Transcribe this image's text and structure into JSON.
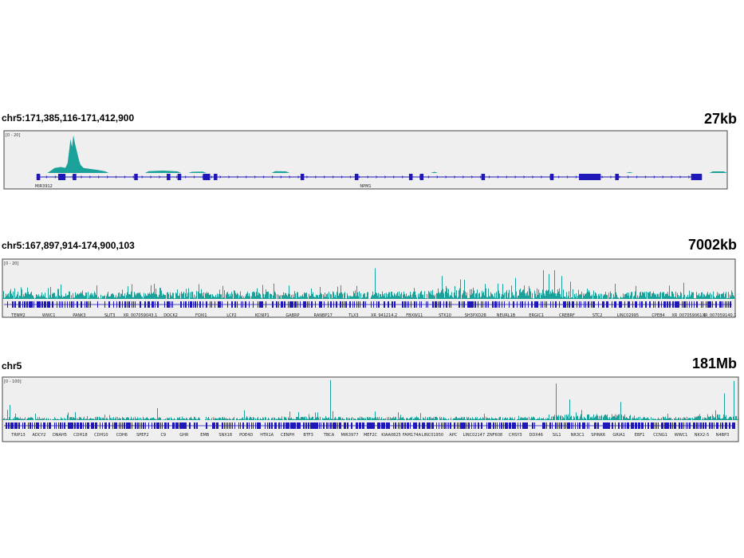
{
  "colors": {
    "signal": "#1aa19a",
    "gene": "#1f18b8",
    "panel_bg": "#efefef",
    "border": "#444444"
  },
  "chart_data": [
    {
      "type": "area",
      "locus": "chr5:171,385,116-171,412,900",
      "span": "27kb",
      "scale_label": "[0 - 20]",
      "ylim": [
        0,
        20
      ],
      "grid": false,
      "signal": [
        [
          0.06,
          0
        ],
        [
          0.065,
          1.2
        ],
        [
          0.07,
          2.5
        ],
        [
          0.078,
          3
        ],
        [
          0.085,
          2.6
        ],
        [
          0.088,
          5
        ],
        [
          0.09,
          11
        ],
        [
          0.092,
          17
        ],
        [
          0.094,
          13
        ],
        [
          0.096,
          19
        ],
        [
          0.098,
          15
        ],
        [
          0.1,
          12
        ],
        [
          0.102,
          9
        ],
        [
          0.104,
          6
        ],
        [
          0.106,
          4
        ],
        [
          0.11,
          2.5
        ],
        [
          0.12,
          2
        ],
        [
          0.13,
          1.5
        ],
        [
          0.14,
          0.8
        ],
        [
          0.145,
          0
        ],
        [
          0.195,
          0
        ],
        [
          0.2,
          0.9
        ],
        [
          0.22,
          1.2
        ],
        [
          0.24,
          0.8
        ],
        [
          0.245,
          0
        ],
        [
          0.255,
          0
        ],
        [
          0.26,
          0.6
        ],
        [
          0.275,
          0.7
        ],
        [
          0.28,
          0
        ],
        [
          0.37,
          0
        ],
        [
          0.375,
          0.9
        ],
        [
          0.39,
          0.8
        ],
        [
          0.395,
          0
        ],
        [
          0.59,
          0
        ],
        [
          0.595,
          0.6
        ],
        [
          0.6,
          0
        ],
        [
          0.86,
          0
        ],
        [
          0.865,
          0.5
        ],
        [
          0.87,
          0
        ],
        [
          0.975,
          0
        ],
        [
          0.98,
          0.8
        ],
        [
          0.995,
          0.8
        ],
        [
          1.0,
          0
        ]
      ],
      "gene_labels": [
        "MIR3912",
        "NPM1"
      ],
      "exons": [
        [
          0.045,
          0.05
        ],
        [
          0.075,
          0.085
        ],
        [
          0.095,
          0.1
        ],
        [
          0.18,
          0.185
        ],
        [
          0.225,
          0.23
        ],
        [
          0.24,
          0.245
        ],
        [
          0.275,
          0.285
        ],
        [
          0.29,
          0.295
        ],
        [
          0.41,
          0.415
        ],
        [
          0.485,
          0.49
        ],
        [
          0.56,
          0.565
        ],
        [
          0.575,
          0.58
        ],
        [
          0.66,
          0.665
        ],
        [
          0.755,
          0.76
        ],
        [
          0.795,
          0.825
        ],
        [
          0.845,
          0.85
        ],
        [
          0.95,
          0.965
        ]
      ]
    },
    {
      "type": "area",
      "locus": "chr5:167,897,914-174,900,103",
      "span": "7002kb",
      "scale_label": "[0 - 20]",
      "ylim": [
        0,
        20
      ],
      "grid": false,
      "signal_peaks": [
        [
          0.508,
          16
        ],
        [
          0.738,
          15
        ],
        [
          0.745,
          13
        ],
        [
          0.753,
          15
        ],
        [
          0.763,
          12
        ],
        [
          0.6,
          12
        ],
        [
          0.7,
          11
        ],
        [
          0.63,
          10
        ],
        [
          0.37,
          8
        ],
        [
          0.91,
          7
        ]
      ],
      "gene_labels": [
        "TENM2",
        "WWC1",
        "PANK3",
        "SLIT3",
        "XR_007059043.1",
        "DOCK2",
        "FOXI1",
        "LCP2",
        "KCNIP1",
        "GABRP",
        "RANBP17",
        "TLX3",
        "XR_941214.2",
        "FBXW11",
        "STK10",
        "SH3PXD2B",
        "NEURL1B",
        "ERGIC1",
        "CREBRF",
        "STC2",
        "LINC02995",
        "CPEB4",
        "XR_007059061.1",
        "XR_007059140.1"
      ]
    },
    {
      "type": "area",
      "locus": "chr5",
      "span": "181Mb",
      "scale_label": "[0 - 100]",
      "ylim": [
        0,
        100
      ],
      "grid": false,
      "signal_peaks": [
        [
          0.445,
          93
        ],
        [
          0.752,
          85
        ],
        [
          0.993,
          91
        ],
        [
          0.98,
          62
        ],
        [
          0.77,
          48
        ],
        [
          0.84,
          42
        ],
        [
          0.01,
          35
        ],
        [
          0.21,
          28
        ],
        [
          0.39,
          20
        ]
      ],
      "gene_labels": [
        "TRIP13",
        "ADCY2",
        "DNAH5",
        "CDH18",
        "CDH10",
        "CDH6",
        "SPEF2",
        "C9",
        "GHR",
        "EMB",
        "SNX18",
        "PDE4D",
        "HTR1A",
        "CENPH",
        "BTF3",
        "TBCA",
        "MIR3977",
        "MEF2C",
        "KIAA0825",
        "FAM174A",
        "LINC01950",
        "APC",
        "LINC02147",
        "ZNF608",
        "CHSY3",
        "DDX46",
        "SIL1",
        "NR3C1",
        "SPINK6",
        "GRIA1",
        "EBF1",
        "CCNG1",
        "WWC1",
        "NKX2-5",
        "N4BP3"
      ]
    }
  ]
}
